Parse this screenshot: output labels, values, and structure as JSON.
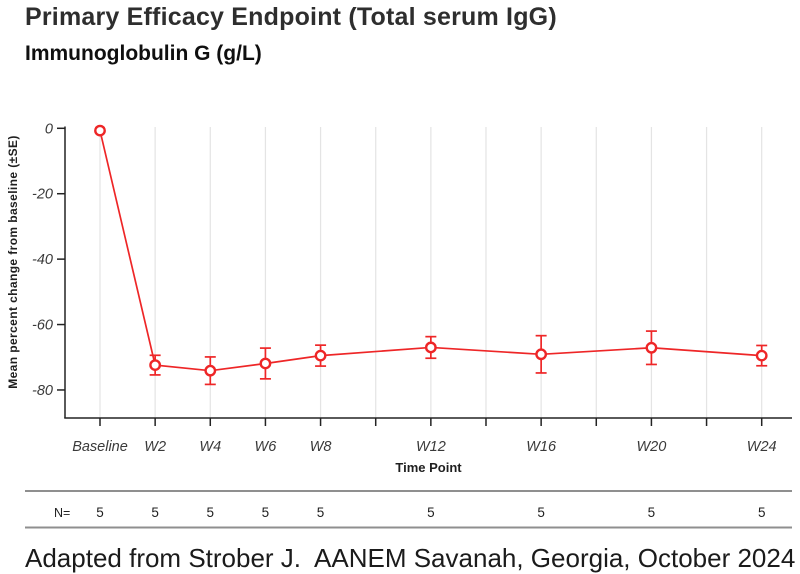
{
  "header": {
    "title": "Primary Efficacy Endpoint (Total serum IgG)",
    "subtitle": "Immunoglobulin G (g/L)"
  },
  "footer": {
    "caption": "Adapted from Strober J.  AANEM Savanah, Georgia, October 2024"
  },
  "chart_data": {
    "type": "line",
    "title": "Primary Efficacy Endpoint (Total serum IgG)",
    "subtitle": "Immunoglobulin G (g/L)",
    "xlabel": "Time Point",
    "ylabel": "Mean percent change from baseline (±SE)",
    "categories": [
      "Baseline",
      "W2",
      "W4",
      "W6",
      "W8",
      "W12",
      "W16",
      "W20",
      "W24"
    ],
    "x_weeks": [
      0,
      2,
      4,
      6,
      8,
      12,
      16,
      20,
      24
    ],
    "series": [
      {
        "name": "Total serum IgG",
        "values": [
          -0.7,
          -72.4,
          -74.1,
          -71.9,
          -69.5,
          -67.0,
          -69.1,
          -67.1,
          -69.5
        ],
        "se": [
          0,
          3.0,
          4.2,
          4.7,
          3.2,
          3.3,
          5.7,
          5.1,
          3.1
        ]
      }
    ],
    "n_row": {
      "label": "N=",
      "values": [
        5,
        5,
        5,
        5,
        5,
        5,
        5,
        5,
        5
      ]
    },
    "yticks": [
      0,
      -20,
      -40,
      -60,
      -80
    ],
    "ylim": [
      2,
      -89
    ],
    "xlim_weeks": [
      -1.3,
      25.1
    ],
    "grid": "vertical-only",
    "legend": "none",
    "marker": "open-circle",
    "colors": {
      "series": "#ee2627",
      "axis": "#232323",
      "grid": "#e4e4e4",
      "rule": "#8f8f8f"
    }
  }
}
